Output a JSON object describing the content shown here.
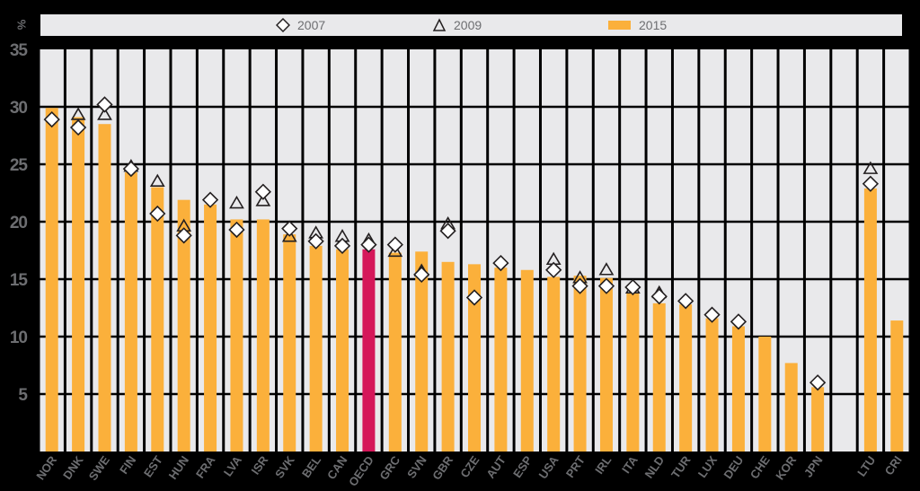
{
  "legend": {
    "items": [
      {
        "label": "2007",
        "marker": "diamond"
      },
      {
        "label": "2009",
        "marker": "triangle"
      },
      {
        "label": "2015",
        "marker": "bar"
      }
    ]
  },
  "axis": {
    "unit_label": "%",
    "y_ticks": [
      "35",
      "30",
      "25",
      "20",
      "15",
      "10",
      "5"
    ]
  },
  "colors": {
    "background": "#000000",
    "plot_cell": "#e9e9eb",
    "bar": "#fbb03b",
    "bar_highlight": "#d5175a",
    "marker_fill": "#ffffff",
    "marker_stroke": "#231f20",
    "text": "#6d6e71"
  },
  "chart_data": {
    "type": "bar",
    "title": "",
    "xlabel": "",
    "ylabel": "%",
    "ylim": [
      0,
      35
    ],
    "y_ticks": [
      5,
      10,
      15,
      20,
      25,
      30,
      35
    ],
    "grid": true,
    "legend_position": "top",
    "categories": [
      "NOR",
      "DNK",
      "SWE",
      "FIN",
      "EST",
      "HUN",
      "FRA",
      "LVA",
      "ISR",
      "SVK",
      "BEL",
      "CAN",
      "OECD",
      "GRC",
      "SVN",
      "GBR",
      "CZE",
      "AUT",
      "ESP",
      "USA",
      "PRT",
      "IRL",
      "ITA",
      "NLD",
      "TUR",
      "LUX",
      "DEU",
      "CHE",
      "KOR",
      "JPN",
      "",
      "LTU",
      "CRI"
    ],
    "highlight": "OECD",
    "series": [
      {
        "name": "2015",
        "type": "bar",
        "values": [
          29.9,
          29.1,
          28.5,
          24.3,
          23.0,
          21.9,
          21.5,
          20.2,
          20.2,
          18.9,
          17.9,
          17.6,
          17.6,
          17.3,
          17.4,
          16.5,
          16.3,
          16.0,
          15.8,
          15.2,
          15.3,
          15.1,
          13.8,
          12.9,
          12.8,
          11.6,
          10.9,
          10.0,
          7.7,
          5.6,
          null,
          22.9,
          11.4
        ]
      },
      {
        "name": "2007",
        "type": "diamond",
        "values": [
          28.9,
          28.2,
          30.2,
          24.6,
          20.7,
          18.8,
          21.9,
          19.3,
          22.6,
          19.4,
          18.3,
          17.9,
          18.0,
          18.0,
          15.4,
          19.2,
          13.4,
          16.4,
          null,
          15.8,
          14.4,
          14.4,
          14.3,
          13.5,
          13.1,
          11.9,
          11.3,
          null,
          null,
          6.0,
          null,
          23.3,
          null
        ]
      },
      {
        "name": "2009",
        "type": "triangle",
        "values": [
          null,
          29.3,
          29.3,
          24.8,
          23.5,
          19.6,
          null,
          21.6,
          21.8,
          18.7,
          19.0,
          18.7,
          18.4,
          17.4,
          15.7,
          19.8,
          null,
          null,
          null,
          16.7,
          15.1,
          15.8,
          14.2,
          13.8,
          null,
          null,
          null,
          null,
          null,
          null,
          null,
          24.6,
          null
        ]
      }
    ]
  }
}
